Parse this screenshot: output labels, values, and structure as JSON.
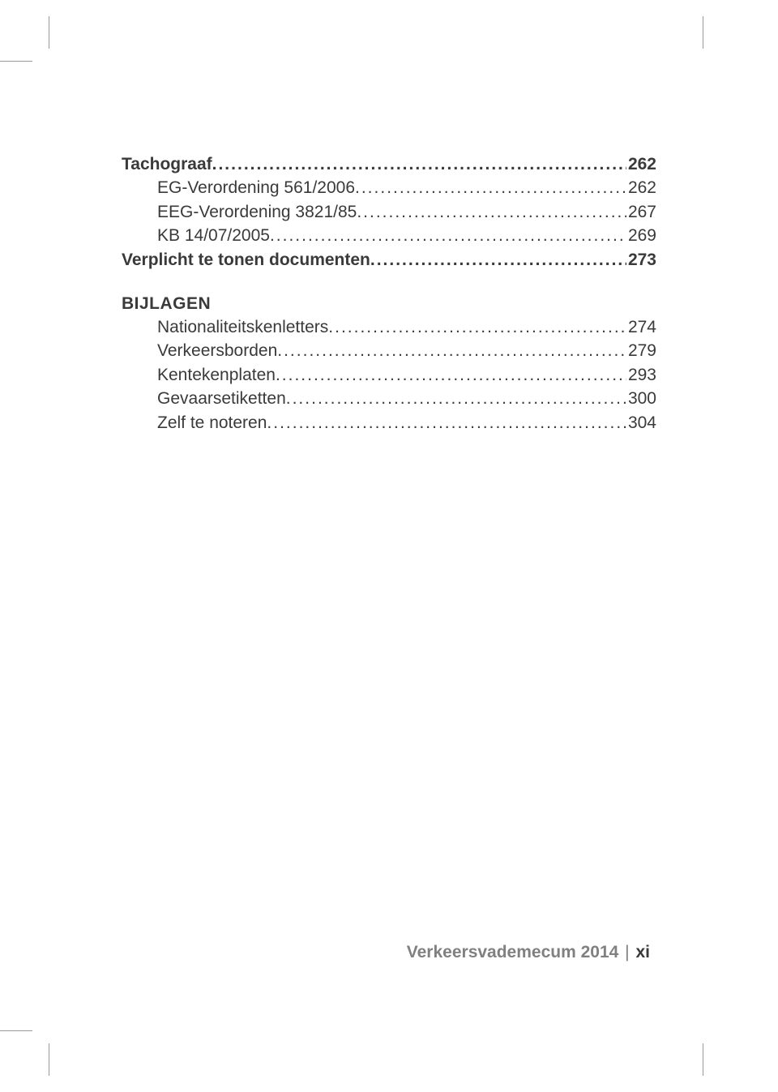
{
  "toc": {
    "mainEntries": [
      {
        "label": "Tachograaf",
        "page": "262",
        "bold": true,
        "indent": false
      },
      {
        "label": "EG-Verordening 561/2006",
        "page": "262",
        "bold": false,
        "indent": true
      },
      {
        "label": "EEG-Verordening 3821/85",
        "page": "267",
        "bold": false,
        "indent": true
      },
      {
        "label": "KB 14/07/2005",
        "page": "269",
        "bold": false,
        "indent": true
      },
      {
        "label": "Verplicht te tonen documenten",
        "page": "273",
        "bold": true,
        "indent": false
      }
    ],
    "sectionHeading": "BIJLAGEN",
    "appendixEntries": [
      {
        "label": "Nationaliteitskenletters",
        "page": "274",
        "bold": false,
        "indent": true
      },
      {
        "label": "Verkeersborden",
        "page": "279",
        "bold": false,
        "indent": true
      },
      {
        "label": "Kentekenplaten",
        "page": "293",
        "bold": false,
        "indent": true
      },
      {
        "label": "Gevaarsetiketten",
        "page": "300",
        "bold": false,
        "indent": true
      },
      {
        "label": "Zelf te noteren",
        "page": "304",
        "bold": false,
        "indent": true
      }
    ]
  },
  "footer": {
    "bookTitle": "Verkeersvademecum 2014",
    "separator": "|",
    "pageNumber": "xi"
  },
  "colors": {
    "text": "#3a3a3a",
    "footerGrey": "#808080",
    "cropMark": "#999999",
    "background": "#ffffff"
  },
  "typography": {
    "bodyFontSize": 21,
    "headingFontSize": 21,
    "footerFontSize": 21
  }
}
